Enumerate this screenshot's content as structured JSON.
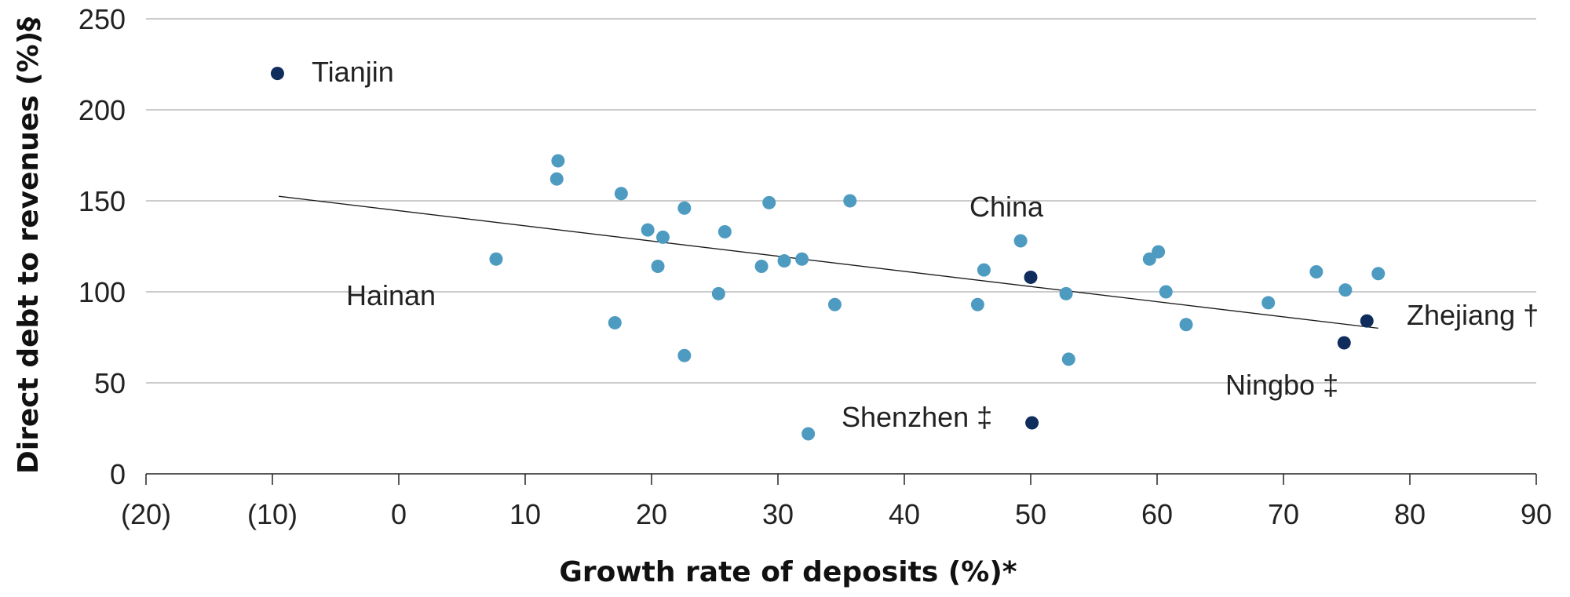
{
  "chart_data": {
    "type": "scatter",
    "xlabel": "Growth rate of deposits (%)*",
    "ylabel": "Direct debt to revenues (%)§",
    "xlim": [
      -20,
      90
    ],
    "ylim": [
      0,
      250
    ],
    "x_ticks": [
      -20,
      -10,
      0,
      10,
      20,
      30,
      40,
      50,
      60,
      70,
      80,
      90
    ],
    "x_tick_labels": [
      "(20)",
      "(10)",
      "0",
      "10",
      "20",
      "30",
      "40",
      "50",
      "60",
      "70",
      "80",
      "90"
    ],
    "y_ticks": [
      0,
      50,
      100,
      150,
      200,
      250
    ],
    "y_tick_labels": [
      "0",
      "50",
      "100",
      "150",
      "200",
      "250"
    ],
    "grid": "horizontal",
    "colors": {
      "regular": "#4e9bc1",
      "highlight": "#0f2d5c",
      "grid": "#999999",
      "text": "#222222"
    },
    "series": [
      {
        "points": [
          {
            "x": 7.7,
            "y": 118
          },
          {
            "x": 12.6,
            "y": 172
          },
          {
            "x": 12.5,
            "y": 162
          },
          {
            "x": 17.6,
            "y": 154
          },
          {
            "x": 17.1,
            "y": 83
          },
          {
            "x": 19.7,
            "y": 134
          },
          {
            "x": 20.5,
            "y": 114
          },
          {
            "x": 20.9,
            "y": 130
          },
          {
            "x": 22.6,
            "y": 146
          },
          {
            "x": 22.6,
            "y": 65
          },
          {
            "x": 25.3,
            "y": 99
          },
          {
            "x": 25.8,
            "y": 133
          },
          {
            "x": 28.7,
            "y": 114
          },
          {
            "x": 29.3,
            "y": 149
          },
          {
            "x": 30.5,
            "y": 117
          },
          {
            "x": 31.9,
            "y": 118
          },
          {
            "x": 32.4,
            "y": 22
          },
          {
            "x": 34.5,
            "y": 93
          },
          {
            "x": 35.7,
            "y": 150
          },
          {
            "x": 45.8,
            "y": 93
          },
          {
            "x": 46.3,
            "y": 112
          },
          {
            "x": 49.2,
            "y": 128
          },
          {
            "x": 52.8,
            "y": 99
          },
          {
            "x": 53,
            "y": 63
          },
          {
            "x": 59.4,
            "y": 118
          },
          {
            "x": 60.1,
            "y": 122
          },
          {
            "x": 60.7,
            "y": 100
          },
          {
            "x": 62.3,
            "y": 82
          },
          {
            "x": 68.8,
            "y": 94
          },
          {
            "x": 72.6,
            "y": 111
          },
          {
            "x": 74.9,
            "y": 101
          },
          {
            "x": 77.5,
            "y": 110
          }
        ]
      },
      {
        "points": [
          {
            "x": -9.6,
            "y": 220
          },
          {
            "x": 50,
            "y": 108
          },
          {
            "x": 50.1,
            "y": 28
          },
          {
            "x": 74.8,
            "y": 72
          },
          {
            "x": 76.6,
            "y": 84
          }
        ]
      }
    ],
    "trendline": {
      "x": [
        -9.5,
        77.5
      ],
      "y": [
        152.5,
        80
      ]
    },
    "annotations": [
      {
        "text": "Tianjin"
      },
      {
        "text": "Hainan"
      },
      {
        "text": "China"
      },
      {
        "text": "Shenzhen ‡"
      },
      {
        "text": "Zhejiang †"
      },
      {
        "text": "Ningbo ‡"
      }
    ]
  }
}
